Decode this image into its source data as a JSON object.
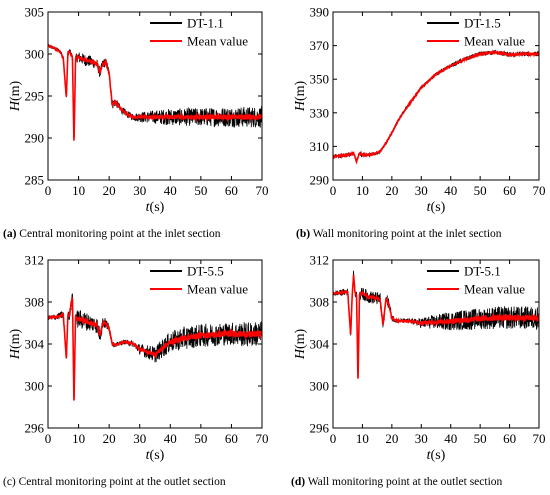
{
  "figure": {
    "captions": [
      {
        "letter": "(a)",
        "text": "Central monitoring point at the inlet section"
      },
      {
        "letter": "(b)",
        "text": "Wall monitoring point at the inlet section"
      },
      {
        "letter": "(c)",
        "text": "Central monitoring point at the outlet section"
      },
      {
        "letter": "(d)",
        "text": "Wall monitoring point at the outlet section"
      }
    ]
  },
  "colors": {
    "raw": "#000000",
    "mean": "#ff0000"
  },
  "chart_data": [
    {
      "type": "line",
      "xlabel": "t(s)",
      "ylabel": "H(m)",
      "xlim": [
        0,
        70
      ],
      "ylim": [
        285,
        305
      ],
      "xticks": [
        0,
        10,
        20,
        30,
        40,
        50,
        60,
        70
      ],
      "yticks": [
        285,
        290,
        295,
        300,
        305
      ],
      "legend": "top-right",
      "series": [
        {
          "name": "DT-1.1",
          "role": "raw",
          "x": [
            0,
            2,
            4,
            5,
            6,
            6.5,
            7,
            8,
            8.5,
            9,
            9.5,
            10,
            12,
            14,
            16,
            17,
            18,
            19,
            20,
            21,
            22,
            24,
            26,
            28,
            30,
            40,
            50,
            60,
            70
          ],
          "y": [
            301,
            300.7,
            300.3,
            299.5,
            294.8,
            300.1,
            300.3,
            299.6,
            289.2,
            299.3,
            299.6,
            299.6,
            299.3,
            299.1,
            298.8,
            297.7,
            298.9,
            299.0,
            297.7,
            294.0,
            294.3,
            293.4,
            292.8,
            292.5,
            292.5,
            292.5,
            292.5,
            292.5,
            292.5
          ],
          "noise_amplitude": [
            0.2,
            0.2,
            0.3,
            0.3,
            0.3,
            0.3,
            0.4,
            0.5,
            0.5,
            0.6,
            0.6,
            0.7,
            0.7,
            0.7,
            0.6,
            0.6,
            0.6,
            0.5,
            0.5,
            0.6,
            0.5,
            0.4,
            0.4,
            0.4,
            0.6,
            1.0,
            1.1,
            1.2,
            1.3
          ]
        },
        {
          "name": "Mean value",
          "role": "mean",
          "x": [
            0,
            2,
            4,
            5,
            6,
            6.5,
            7,
            8,
            8.5,
            9,
            9.5,
            10,
            12,
            14,
            16,
            17,
            18,
            19,
            20,
            21,
            22,
            24,
            26,
            28,
            30,
            40,
            50,
            60,
            70
          ],
          "y": [
            301,
            300.7,
            300.3,
            299.5,
            294.8,
            300.1,
            300.3,
            299.6,
            289.2,
            299.3,
            299.6,
            299.6,
            299.3,
            299.1,
            298.8,
            297.7,
            298.9,
            299.0,
            297.7,
            294.0,
            294.3,
            293.4,
            292.8,
            292.5,
            292.5,
            292.5,
            292.5,
            292.5,
            292.5
          ]
        }
      ]
    },
    {
      "type": "line",
      "xlabel": "t(s)",
      "ylabel": "H(m)",
      "xlim": [
        0,
        70
      ],
      "ylim": [
        290,
        390
      ],
      "xticks": [
        0,
        10,
        20,
        30,
        40,
        50,
        60,
        70
      ],
      "yticks": [
        290,
        310,
        330,
        350,
        370,
        390
      ],
      "legend": "top-right",
      "series": [
        {
          "name": "DT-1.5",
          "role": "raw",
          "x": [
            0,
            4,
            7,
            8,
            9,
            10,
            12,
            14,
            16,
            18,
            20,
            22,
            25,
            30,
            35,
            40,
            45,
            50,
            55,
            60,
            65,
            70
          ],
          "y": [
            304,
            304.5,
            306,
            301,
            306,
            305,
            305,
            305.5,
            307,
            312,
            318,
            325,
            333,
            345,
            353,
            358,
            362,
            365,
            366,
            364.5,
            365,
            365
          ],
          "noise_amplitude": [
            1.2,
            1.2,
            1.3,
            1.3,
            1.3,
            1.2,
            1.0,
            1.0,
            1.0,
            1.0,
            1.0,
            1.0,
            1.0,
            1.0,
            1.0,
            1.2,
            1.3,
            1.3,
            1.3,
            1.4,
            1.4,
            1.4
          ]
        },
        {
          "name": "Mean value",
          "role": "mean",
          "x": [
            0,
            4,
            7,
            8,
            9,
            10,
            12,
            14,
            16,
            18,
            20,
            22,
            25,
            30,
            35,
            40,
            45,
            50,
            55,
            60,
            65,
            70
          ],
          "y": [
            304,
            304.5,
            306,
            301,
            306,
            305,
            305,
            305.5,
            307,
            312,
            318,
            325,
            333,
            345,
            353,
            358,
            362,
            365,
            366,
            364.5,
            365,
            365
          ]
        }
      ]
    },
    {
      "type": "line",
      "xlabel": "t(s)",
      "ylabel": "H(m)",
      "xlim": [
        0,
        70
      ],
      "ylim": [
        296,
        312
      ],
      "xticks": [
        0,
        10,
        20,
        30,
        40,
        50,
        60,
        70
      ],
      "yticks": [
        296,
        300,
        304,
        308,
        312
      ],
      "legend": "top-right",
      "series": [
        {
          "name": "DT-5.5",
          "role": "raw",
          "x": [
            0,
            3,
            5,
            6,
            6.5,
            7,
            8,
            8.5,
            9,
            9.5,
            10,
            12,
            14,
            16,
            17,
            18,
            19,
            20,
            21,
            22,
            25,
            28,
            30,
            35,
            40,
            45,
            50,
            55,
            60,
            65,
            70
          ],
          "y": [
            306.5,
            306.6,
            306.8,
            302.6,
            306.7,
            306.8,
            308.5,
            298.2,
            306.6,
            306.4,
            306.4,
            306.2,
            306,
            305.8,
            304.8,
            306.1,
            305.9,
            305.5,
            304,
            303.9,
            304.2,
            304.0,
            303.5,
            303,
            304.2,
            304.6,
            304.8,
            304.9,
            305,
            304.9,
            305
          ],
          "noise_amplitude": [
            0.2,
            0.3,
            0.4,
            0.4,
            0.4,
            0.5,
            0.6,
            0.6,
            0.7,
            0.8,
            0.9,
            0.9,
            0.8,
            0.8,
            0.7,
            0.6,
            0.5,
            0.4,
            0.2,
            0.2,
            0.2,
            0.3,
            0.5,
            0.8,
            1.0,
            1.1,
            1.1,
            1.1,
            1.1,
            1.2,
            1.2
          ]
        },
        {
          "name": "Mean value",
          "role": "mean",
          "x": [
            0,
            3,
            5,
            6,
            6.5,
            7,
            8,
            8.5,
            9,
            9.5,
            10,
            12,
            14,
            16,
            17,
            18,
            19,
            20,
            21,
            22,
            25,
            28,
            30,
            35,
            40,
            45,
            50,
            55,
            60,
            65,
            70
          ],
          "y": [
            306.5,
            306.6,
            306.8,
            302.6,
            306.7,
            306.8,
            308.5,
            298.2,
            306.6,
            306.4,
            306.4,
            306.2,
            306,
            305.8,
            304.8,
            306.1,
            305.9,
            305.5,
            304,
            303.9,
            304.2,
            304.0,
            303.5,
            303,
            304.2,
            304.6,
            304.8,
            304.9,
            305,
            304.9,
            305
          ]
        }
      ]
    },
    {
      "type": "line",
      "xlabel": "t(s)",
      "ylabel": "H(m)",
      "xlim": [
        0,
        70
      ],
      "ylim": [
        296,
        312
      ],
      "xticks": [
        0,
        10,
        20,
        30,
        40,
        50,
        60,
        70
      ],
      "yticks": [
        296,
        300,
        304,
        308,
        312
      ],
      "legend": "top-right",
      "series": [
        {
          "name": "DT-5.1",
          "role": "raw",
          "x": [
            0,
            3,
            5,
            6,
            6.5,
            7,
            7.5,
            8,
            8.5,
            9,
            10,
            12,
            14,
            16,
            17,
            18,
            19,
            20,
            21,
            22,
            25,
            28,
            30,
            35,
            40,
            45,
            50,
            55,
            60,
            65,
            70
          ],
          "y": [
            308.8,
            308.9,
            309,
            304.8,
            308.5,
            310.6,
            308.8,
            308.7,
            300.3,
            308.7,
            308.8,
            308.5,
            308.4,
            308.3,
            305.7,
            308.4,
            307.8,
            306.5,
            306.3,
            306.2,
            306.2,
            306.1,
            306.0,
            306.1,
            306.2,
            306.3,
            306.4,
            306.5,
            306.5,
            306.5,
            306.5
          ],
          "noise_amplitude": [
            0.2,
            0.3,
            0.3,
            0.3,
            0.3,
            0.4,
            0.4,
            0.5,
            0.5,
            0.6,
            0.6,
            0.6,
            0.6,
            0.6,
            0.6,
            0.5,
            0.5,
            0.4,
            0.2,
            0.2,
            0.2,
            0.3,
            0.5,
            0.7,
            0.9,
            1.0,
            1.0,
            1.1,
            1.1,
            1.1,
            1.1
          ]
        },
        {
          "name": "Mean value",
          "role": "mean",
          "x": [
            0,
            3,
            5,
            6,
            6.5,
            7,
            7.5,
            8,
            8.5,
            9,
            10,
            12,
            14,
            16,
            17,
            18,
            19,
            20,
            21,
            22,
            25,
            28,
            30,
            35,
            40,
            45,
            50,
            55,
            60,
            65,
            70
          ],
          "y": [
            308.8,
            308.9,
            309,
            304.8,
            308.5,
            310.6,
            308.8,
            308.7,
            300.3,
            308.7,
            308.8,
            308.5,
            308.4,
            308.3,
            305.7,
            308.4,
            307.8,
            306.5,
            306.3,
            306.2,
            306.2,
            306.1,
            306.0,
            306.1,
            306.2,
            306.3,
            306.4,
            306.5,
            306.5,
            306.5,
            306.5
          ]
        }
      ]
    }
  ]
}
